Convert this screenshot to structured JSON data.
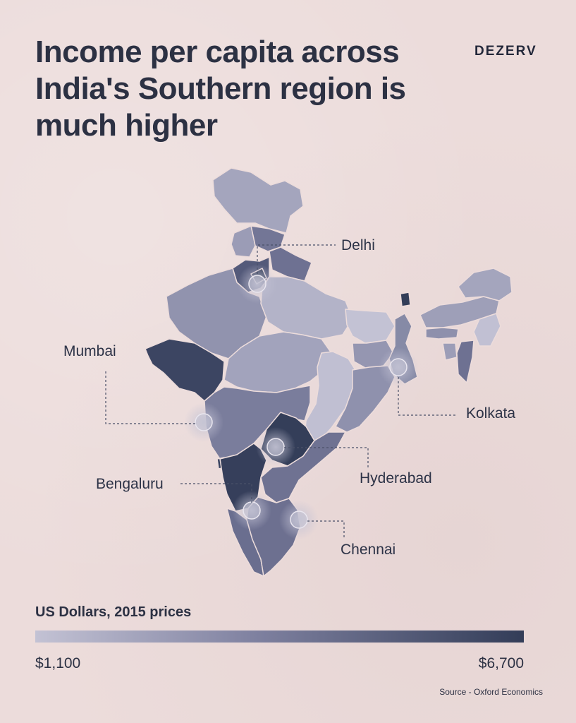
{
  "title_lines": [
    "Income per capita across",
    "India's Southern region is",
    "much higher"
  ],
  "brand": "DEZERV",
  "cities": [
    {
      "id": "delhi",
      "label": "Delhi"
    },
    {
      "id": "mumbai",
      "label": "Mumbai"
    },
    {
      "id": "kolkata",
      "label": "Kolkata"
    },
    {
      "id": "hyderabad",
      "label": "Hyderabad"
    },
    {
      "id": "bengaluru",
      "label": "Bengaluru"
    },
    {
      "id": "chennai",
      "label": "Chennai"
    }
  ],
  "legend": {
    "title": "US Dollars, 2015 prices",
    "min_label": "$1,100",
    "max_label": "$6,700",
    "color_min": "#c3c2d4",
    "color_mid": "#7f81a0",
    "color_max": "#333d58"
  },
  "source": "Source - Oxford Economics",
  "colors": {
    "background": "#ecdcdb",
    "text": "#2d3347",
    "region_border": "#ecdcdb",
    "marker": "#c3c2d4"
  }
}
